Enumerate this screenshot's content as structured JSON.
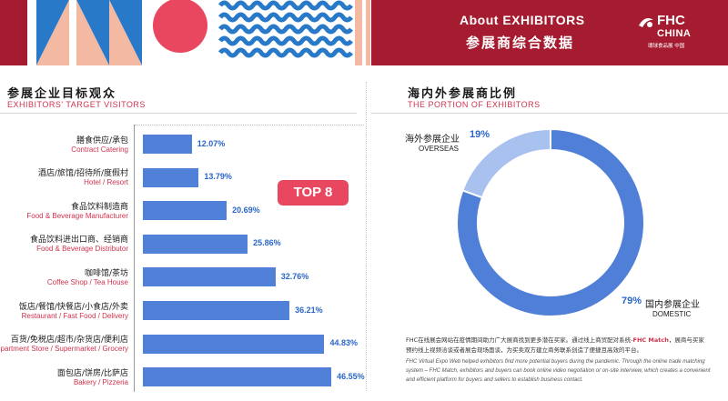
{
  "header": {
    "title_en": "About  EXHIBITORS",
    "title_cn": "参展商综合数据",
    "logo_main": "FHC",
    "logo_sub": "CHINA",
    "logo_caption": "環球食品展 中国"
  },
  "left": {
    "title_cn": "参展企业目标观众",
    "title_en": "EXHIBITORS' TARGET VISITORS",
    "badge": "TOP 8"
  },
  "right": {
    "title_cn": "海内外参展商比例",
    "title_en": "THE PORTION OF EXHIBITORS"
  },
  "footnote": {
    "cn_1": "FHC在线展会网站在疫情期间助力广大展商找到更多潜在买家。通过线上商贸配对系统-",
    "cn_red": "FHC Match",
    "cn_2": "，展商与买家",
    "cn_3": "预约线上视频洽谈或者展会现场面谈，为买卖双方建立商务联系创造了便捷且高效的平台。",
    "en_1": "FHC Virtual Expo Web helped exhibitors find more potential buyers during the pandemic. Through the online trade matching",
    "en_2": "system – FHC Match, exhibitors and buyers can book online video negotiation or on-site interview, which creates a convenient",
    "en_3": "and efficient platform for buyers and sellers to establish business contact."
  },
  "colors": {
    "brand_red": "#a51c30",
    "accent_pink": "#e8475f",
    "bar_blue": "#5080d8",
    "donut_dark": "#4f7fd6",
    "donut_light": "#a9c1ef",
    "wave_blue": "#2979c9",
    "peach": "#f4b9a3"
  },
  "chart_data": [
    {
      "type": "bar",
      "orientation": "horizontal",
      "unit": "%",
      "categories_cn": [
        "膳食供应/承包",
        "酒店/旅馆/招待所/度假村",
        "食品饮料制造商",
        "食品饮料进出口商、经销商",
        "咖啡馆/茶坊",
        "饭店/餐馆/快餐店/小食店/外卖",
        "百货/免税店/超市/杂货店/便利店",
        "面包店/饼房/比萨店"
      ],
      "categories_en": [
        "Contract Catering",
        "Hotel / Resort",
        "Food & Beverage Manufacturer",
        "Food & Beverage Distributor",
        "Coffee Shop / Tea House",
        "Restaurant / Fast Food / Delivery",
        "Department Store / Supermarket / Grocery",
        "Bakery / Pizzeria"
      ],
      "values": [
        12.07,
        13.79,
        20.69,
        25.86,
        32.76,
        36.21,
        44.83,
        46.55
      ],
      "value_labels": [
        "12.07%",
        "13.79%",
        "20.69%",
        "25.86%",
        "32.76%",
        "36.21%",
        "44.83%",
        "46.55%"
      ],
      "xlim": [
        0,
        50
      ]
    },
    {
      "type": "pie",
      "style": "donut",
      "slices": [
        {
          "label_cn": "国内参展企业",
          "label_en": "DOMESTIC",
          "value": 79,
          "pct_label": "79%"
        },
        {
          "label_cn": "海外参展企业",
          "label_en": "OVERSEAS",
          "value": 19,
          "pct_label": "19%"
        }
      ]
    }
  ]
}
